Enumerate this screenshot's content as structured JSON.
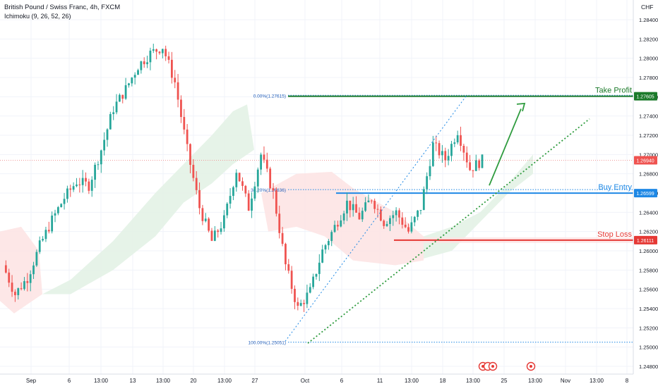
{
  "header": {
    "title": "British Pound / Swiss Franc, 4h, FXCM",
    "indicator": "Ichimoku (9, 26, 52, 26)",
    "currency": "CHF"
  },
  "colors": {
    "up": "#26a69a",
    "down": "#ef5350",
    "take_profit": "#1b7a2a",
    "buy_entry": "#1e88e5",
    "stop_loss": "#e53935",
    "trend": "#2e9b3e",
    "fib": "#1e88e5",
    "cloud_bull": "#e3f2e6",
    "cloud_bear": "#fde4e4",
    "grid": "#f0f3fa"
  },
  "levels": {
    "take_profit": {
      "label": "Take Profit",
      "price": 1.27605,
      "price_label": "1.27605"
    },
    "buy_entry": {
      "label": "Buy Entry",
      "price": 1.26599,
      "price_label": "1.26599"
    },
    "stop_loss": {
      "label": "Stop Loss",
      "price": 1.26111,
      "price_label": "1.26111"
    },
    "current": {
      "price": 1.2694,
      "price_label": "1.26940"
    }
  },
  "fib": [
    {
      "label": "0.00%(1.27615)",
      "price": 1.27615
    },
    {
      "label": "38.20%(1.26636)",
      "price": 1.26636
    },
    {
      "label": "100.00%(1.25051)",
      "price": 1.25051
    }
  ],
  "chart_data": {
    "type": "candlestick",
    "symbol": "British Pound / Swiss Franc",
    "timeframe": "4h",
    "y_axis_ticks": [
      "1.28400",
      "1.28200",
      "1.28000",
      "1.27800",
      "1.27600",
      "1.27400",
      "1.27200",
      "1.27000",
      "1.26800",
      "1.26600",
      "1.26400",
      "1.26200",
      "1.26000",
      "1.25800",
      "1.25600",
      "1.25400",
      "1.25200",
      "1.25000",
      "1.24800"
    ],
    "ylim": [
      1.2475,
      1.2851
    ],
    "x_axis_ticks": [
      "Sep",
      "6",
      "13:00",
      "13",
      "13:00",
      "20",
      "13:00",
      "27",
      "Oct",
      "6",
      "11",
      "13:00",
      "18",
      "13:00",
      "25",
      "13:00",
      "Nov",
      "13:00",
      "8"
    ],
    "series_close_path": [
      [
        0,
        1.2585
      ],
      [
        4,
        1.2555
      ],
      [
        8,
        1.2572
      ],
      [
        12,
        1.2605
      ],
      [
        16,
        1.2632
      ],
      [
        20,
        1.2655
      ],
      [
        24,
        1.2672
      ],
      [
        28,
        1.2668
      ],
      [
        32,
        1.2705
      ],
      [
        36,
        1.2748
      ],
      [
        40,
        1.2768
      ],
      [
        44,
        1.2792
      ],
      [
        48,
        1.2805
      ],
      [
        52,
        1.2812
      ],
      [
        56,
        1.2775
      ],
      [
        60,
        1.2705
      ],
      [
        64,
        1.2645
      ],
      [
        68,
        1.261
      ],
      [
        72,
        1.2632
      ],
      [
        76,
        1.2684
      ],
      [
        80,
        1.2645
      ],
      [
        84,
        1.27
      ],
      [
        88,
        1.266
      ],
      [
        92,
        1.2585
      ],
      [
        96,
        1.254
      ],
      [
        100,
        1.2558
      ],
      [
        104,
        1.26
      ],
      [
        108,
        1.2625
      ],
      [
        112,
        1.265
      ],
      [
        116,
        1.2635
      ],
      [
        120,
        1.2655
      ],
      [
        124,
        1.263
      ],
      [
        128,
        1.264
      ],
      [
        132,
        1.262
      ],
      [
        136,
        1.2645
      ],
      [
        140,
        1.271
      ],
      [
        144,
        1.2695
      ],
      [
        148,
        1.2725
      ],
      [
        152,
        1.2685
      ],
      [
        156,
        1.2694
      ]
    ],
    "annotations": [
      "Take Profit",
      "Buy Entry",
      "Stop Loss"
    ]
  }
}
